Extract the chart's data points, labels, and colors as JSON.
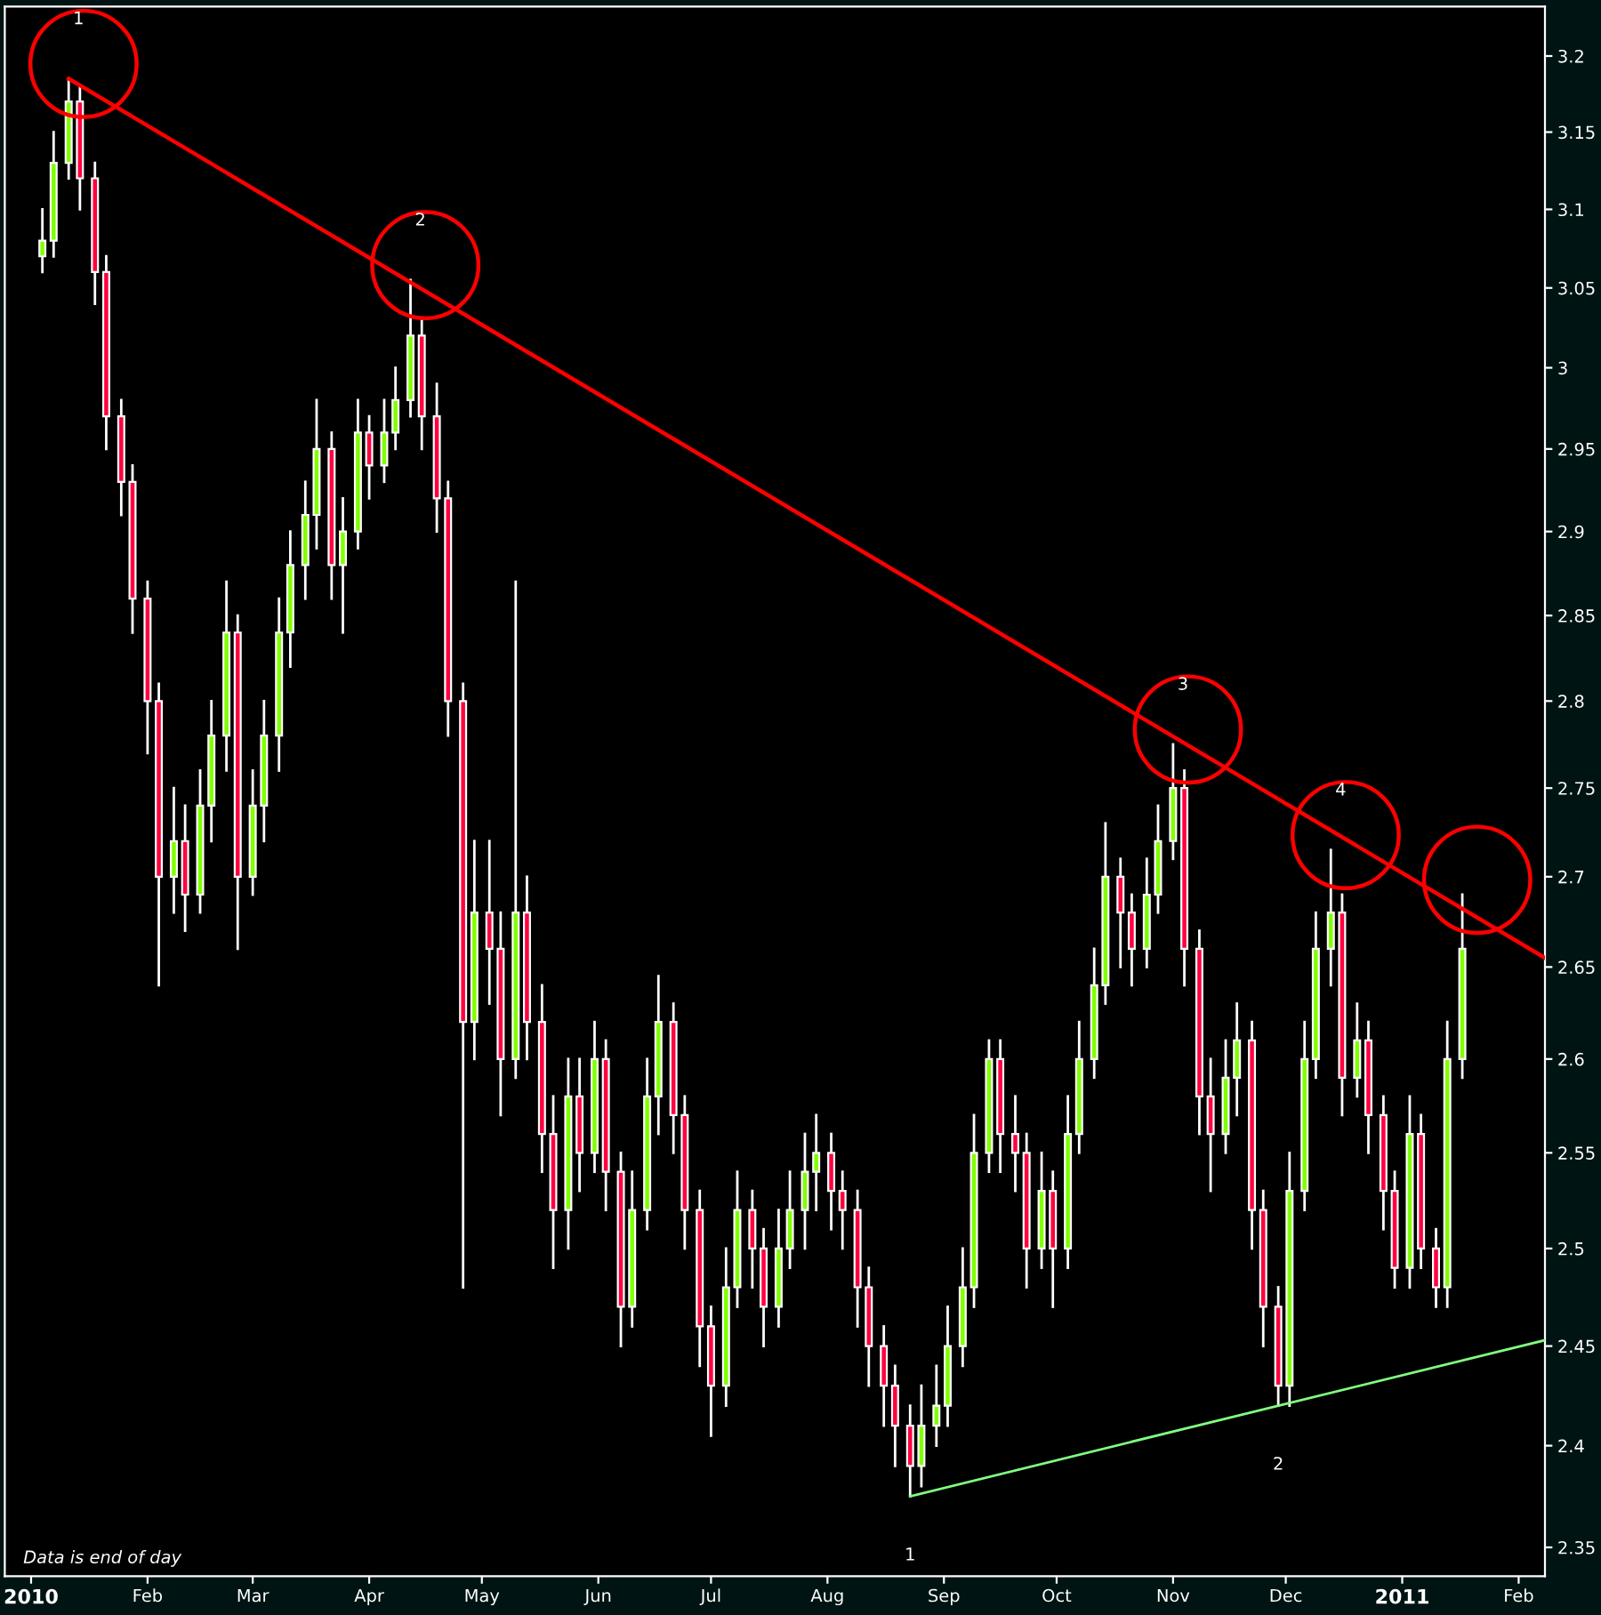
{
  "chart_data": {
    "type": "candlestick",
    "x": [
      "2010-01-04",
      "2010-01-07",
      "2010-01-11",
      "2010-01-14",
      "2010-01-18",
      "2010-01-21",
      "2010-01-25",
      "2010-01-28",
      "2010-02-01",
      "2010-02-04",
      "2010-02-08",
      "2010-02-11",
      "2010-02-15",
      "2010-02-18",
      "2010-02-22",
      "2010-02-25",
      "2010-03-01",
      "2010-03-04",
      "2010-03-08",
      "2010-03-11",
      "2010-03-15",
      "2010-03-18",
      "2010-03-22",
      "2010-03-25",
      "2010-03-29",
      "2010-04-01",
      "2010-04-05",
      "2010-04-08",
      "2010-04-12",
      "2010-04-15",
      "2010-04-19",
      "2010-04-22",
      "2010-04-26",
      "2010-04-29",
      "2010-05-03",
      "2010-05-06",
      "2010-05-10",
      "2010-05-13",
      "2010-05-17",
      "2010-05-20",
      "2010-05-24",
      "2010-05-27",
      "2010-05-31",
      "2010-06-03",
      "2010-06-07",
      "2010-06-10",
      "2010-06-14",
      "2010-06-17",
      "2010-06-21",
      "2010-06-24",
      "2010-06-28",
      "2010-07-01",
      "2010-07-05",
      "2010-07-08",
      "2010-07-12",
      "2010-07-15",
      "2010-07-19",
      "2010-07-22",
      "2010-07-26",
      "2010-07-29",
      "2010-08-02",
      "2010-08-05",
      "2010-08-09",
      "2010-08-12",
      "2010-08-16",
      "2010-08-19",
      "2010-08-23",
      "2010-08-26",
      "2010-08-30",
      "2010-09-02",
      "2010-09-06",
      "2010-09-09",
      "2010-09-13",
      "2010-09-16",
      "2010-09-20",
      "2010-09-23",
      "2010-09-27",
      "2010-09-30",
      "2010-10-04",
      "2010-10-07",
      "2010-10-11",
      "2010-10-14",
      "2010-10-18",
      "2010-10-21",
      "2010-10-25",
      "2010-10-28",
      "2010-11-01",
      "2010-11-04",
      "2010-11-08",
      "2010-11-11",
      "2010-11-15",
      "2010-11-18",
      "2010-11-22",
      "2010-11-25",
      "2010-11-29",
      "2010-12-02",
      "2010-12-06",
      "2010-12-09",
      "2010-12-13",
      "2010-12-16",
      "2010-12-20",
      "2010-12-23",
      "2010-12-27",
      "2010-12-30",
      "2011-01-03",
      "2011-01-06",
      "2011-01-10",
      "2011-01-13",
      "2011-01-17"
    ],
    "ohlc": [
      [
        3.07,
        3.1,
        3.06,
        3.08
      ],
      [
        3.08,
        3.15,
        3.07,
        3.13
      ],
      [
        3.13,
        3.185,
        3.12,
        3.17
      ],
      [
        3.17,
        3.18,
        3.1,
        3.12
      ],
      [
        3.12,
        3.13,
        3.04,
        3.06
      ],
      [
        3.06,
        3.07,
        2.95,
        2.97
      ],
      [
        2.97,
        2.98,
        2.91,
        2.93
      ],
      [
        2.93,
        2.94,
        2.84,
        2.86
      ],
      [
        2.86,
        2.87,
        2.77,
        2.8
      ],
      [
        2.8,
        2.81,
        2.64,
        2.7
      ],
      [
        2.7,
        2.75,
        2.68,
        2.72
      ],
      [
        2.72,
        2.74,
        2.67,
        2.69
      ],
      [
        2.69,
        2.76,
        2.68,
        2.74
      ],
      [
        2.74,
        2.8,
        2.72,
        2.78
      ],
      [
        2.78,
        2.87,
        2.76,
        2.84
      ],
      [
        2.84,
        2.85,
        2.66,
        2.7
      ],
      [
        2.7,
        2.76,
        2.69,
        2.74
      ],
      [
        2.74,
        2.8,
        2.72,
        2.78
      ],
      [
        2.78,
        2.86,
        2.76,
        2.84
      ],
      [
        2.84,
        2.9,
        2.82,
        2.88
      ],
      [
        2.88,
        2.93,
        2.86,
        2.91
      ],
      [
        2.91,
        2.98,
        2.89,
        2.95
      ],
      [
        2.95,
        2.96,
        2.86,
        2.88
      ],
      [
        2.88,
        2.92,
        2.84,
        2.9
      ],
      [
        2.9,
        2.98,
        2.89,
        2.96
      ],
      [
        2.96,
        2.97,
        2.92,
        2.94
      ],
      [
        2.94,
        2.98,
        2.93,
        2.96
      ],
      [
        2.96,
        3.0,
        2.95,
        2.98
      ],
      [
        2.98,
        3.055,
        2.97,
        3.02
      ],
      [
        3.02,
        3.03,
        2.95,
        2.97
      ],
      [
        2.97,
        2.99,
        2.9,
        2.92
      ],
      [
        2.92,
        2.93,
        2.78,
        2.8
      ],
      [
        2.8,
        2.81,
        2.48,
        2.62
      ],
      [
        2.62,
        2.72,
        2.6,
        2.68
      ],
      [
        2.68,
        2.72,
        2.63,
        2.66
      ],
      [
        2.66,
        2.68,
        2.57,
        2.6
      ],
      [
        2.6,
        2.87,
        2.59,
        2.68
      ],
      [
        2.68,
        2.7,
        2.6,
        2.62
      ],
      [
        2.62,
        2.64,
        2.54,
        2.56
      ],
      [
        2.56,
        2.58,
        2.49,
        2.52
      ],
      [
        2.52,
        2.6,
        2.5,
        2.58
      ],
      [
        2.58,
        2.6,
        2.53,
        2.55
      ],
      [
        2.55,
        2.62,
        2.54,
        2.6
      ],
      [
        2.6,
        2.61,
        2.52,
        2.54
      ],
      [
        2.54,
        2.55,
        2.45,
        2.47
      ],
      [
        2.47,
        2.54,
        2.46,
        2.52
      ],
      [
        2.52,
        2.6,
        2.51,
        2.58
      ],
      [
        2.58,
        2.645,
        2.56,
        2.62
      ],
      [
        2.62,
        2.63,
        2.55,
        2.57
      ],
      [
        2.57,
        2.58,
        2.5,
        2.52
      ],
      [
        2.52,
        2.53,
        2.44,
        2.46
      ],
      [
        2.46,
        2.47,
        2.405,
        2.43
      ],
      [
        2.43,
        2.5,
        2.42,
        2.48
      ],
      [
        2.48,
        2.54,
        2.47,
        2.52
      ],
      [
        2.52,
        2.53,
        2.48,
        2.5
      ],
      [
        2.5,
        2.51,
        2.45,
        2.47
      ],
      [
        2.47,
        2.52,
        2.46,
        2.5
      ],
      [
        2.5,
        2.54,
        2.49,
        2.52
      ],
      [
        2.52,
        2.56,
        2.5,
        2.54
      ],
      [
        2.54,
        2.57,
        2.52,
        2.55
      ],
      [
        2.55,
        2.56,
        2.51,
        2.53
      ],
      [
        2.53,
        2.54,
        2.5,
        2.52
      ],
      [
        2.52,
        2.53,
        2.46,
        2.48
      ],
      [
        2.48,
        2.49,
        2.43,
        2.45
      ],
      [
        2.45,
        2.46,
        2.41,
        2.43
      ],
      [
        2.43,
        2.44,
        2.39,
        2.41
      ],
      [
        2.41,
        2.42,
        2.375,
        2.39
      ],
      [
        2.39,
        2.43,
        2.38,
        2.41
      ],
      [
        2.41,
        2.44,
        2.4,
        2.42
      ],
      [
        2.42,
        2.47,
        2.41,
        2.45
      ],
      [
        2.45,
        2.5,
        2.44,
        2.48
      ],
      [
        2.48,
        2.57,
        2.47,
        2.55
      ],
      [
        2.55,
        2.61,
        2.54,
        2.6
      ],
      [
        2.6,
        2.61,
        2.54,
        2.56
      ],
      [
        2.56,
        2.58,
        2.53,
        2.55
      ],
      [
        2.55,
        2.56,
        2.48,
        2.5
      ],
      [
        2.5,
        2.55,
        2.49,
        2.53
      ],
      [
        2.53,
        2.54,
        2.47,
        2.5
      ],
      [
        2.5,
        2.58,
        2.49,
        2.56
      ],
      [
        2.56,
        2.62,
        2.55,
        2.6
      ],
      [
        2.6,
        2.66,
        2.59,
        2.64
      ],
      [
        2.64,
        2.73,
        2.63,
        2.7
      ],
      [
        2.7,
        2.71,
        2.65,
        2.68
      ],
      [
        2.68,
        2.69,
        2.64,
        2.66
      ],
      [
        2.66,
        2.71,
        2.65,
        2.69
      ],
      [
        2.69,
        2.74,
        2.68,
        2.72
      ],
      [
        2.72,
        2.775,
        2.71,
        2.75
      ],
      [
        2.75,
        2.76,
        2.64,
        2.66
      ],
      [
        2.66,
        2.67,
        2.56,
        2.58
      ],
      [
        2.58,
        2.6,
        2.53,
        2.56
      ],
      [
        2.56,
        2.61,
        2.55,
        2.59
      ],
      [
        2.59,
        2.63,
        2.57,
        2.61
      ],
      [
        2.61,
        2.62,
        2.5,
        2.52
      ],
      [
        2.52,
        2.53,
        2.45,
        2.47
      ],
      [
        2.47,
        2.48,
        2.42,
        2.43
      ],
      [
        2.43,
        2.55,
        2.42,
        2.53
      ],
      [
        2.53,
        2.62,
        2.52,
        2.6
      ],
      [
        2.6,
        2.68,
        2.59,
        2.66
      ],
      [
        2.66,
        2.715,
        2.64,
        2.68
      ],
      [
        2.68,
        2.69,
        2.57,
        2.59
      ],
      [
        2.59,
        2.63,
        2.58,
        2.61
      ],
      [
        2.61,
        2.62,
        2.55,
        2.57
      ],
      [
        2.57,
        2.58,
        2.51,
        2.53
      ],
      [
        2.53,
        2.54,
        2.48,
        2.49
      ],
      [
        2.49,
        2.58,
        2.48,
        2.56
      ],
      [
        2.56,
        2.57,
        2.49,
        2.5
      ],
      [
        2.5,
        2.51,
        2.47,
        2.48
      ],
      [
        2.48,
        2.62,
        2.47,
        2.6
      ],
      [
        2.6,
        2.69,
        2.59,
        2.66
      ]
    ],
    "series": [
      {
        "type": "line",
        "x": [
          "2010-01-11",
          "2011-02-08"
        ],
        "values": [
          3.185,
          2.655
        ],
        "color": "#ff0000"
      },
      {
        "type": "line",
        "x": [
          "2010-08-23",
          "2011-02-08"
        ],
        "values": [
          2.375,
          2.453
        ],
        "color": "#80ff80"
      }
    ],
    "annotations": [
      "1",
      "2",
      "3",
      "4",
      "1",
      "2",
      "Data is end of day"
    ],
    "log": true,
    "xlim": [
      "2009-12-25",
      "2011-02-08"
    ],
    "xticks": [
      {
        "value": "2010-01-01",
        "label": "2010"
      },
      {
        "value": "2010-02-01",
        "label": "Feb"
      },
      {
        "value": "2010-03-01",
        "label": "Mar"
      },
      {
        "value": "2010-04-01",
        "label": "Apr"
      },
      {
        "value": "2010-05-01",
        "label": "May"
      },
      {
        "value": "2010-06-01",
        "label": "Jun"
      },
      {
        "value": "2010-07-01",
        "label": "Jul"
      },
      {
        "value": "2010-08-01",
        "label": "Aug"
      },
      {
        "value": "2010-09-01",
        "label": "Sep"
      },
      {
        "value": "2010-10-01",
        "label": "Oct"
      },
      {
        "value": "2010-11-01",
        "label": "Nov"
      },
      {
        "value": "2010-12-01",
        "label": "Dec"
      },
      {
        "value": "2011-01-01",
        "label": "2011"
      },
      {
        "value": "2011-02-01",
        "label": "Feb"
      }
    ],
    "ylim": [
      2.336,
      3.233
    ],
    "yticks": [
      2.35,
      2.4,
      2.45,
      2.5,
      2.55,
      2.6,
      2.65,
      2.7,
      2.75,
      2.8,
      2.85,
      2.9,
      2.95,
      3,
      3.05,
      3.1,
      3.15,
      3.2
    ],
    "grid": false,
    "legend": false
  }
}
